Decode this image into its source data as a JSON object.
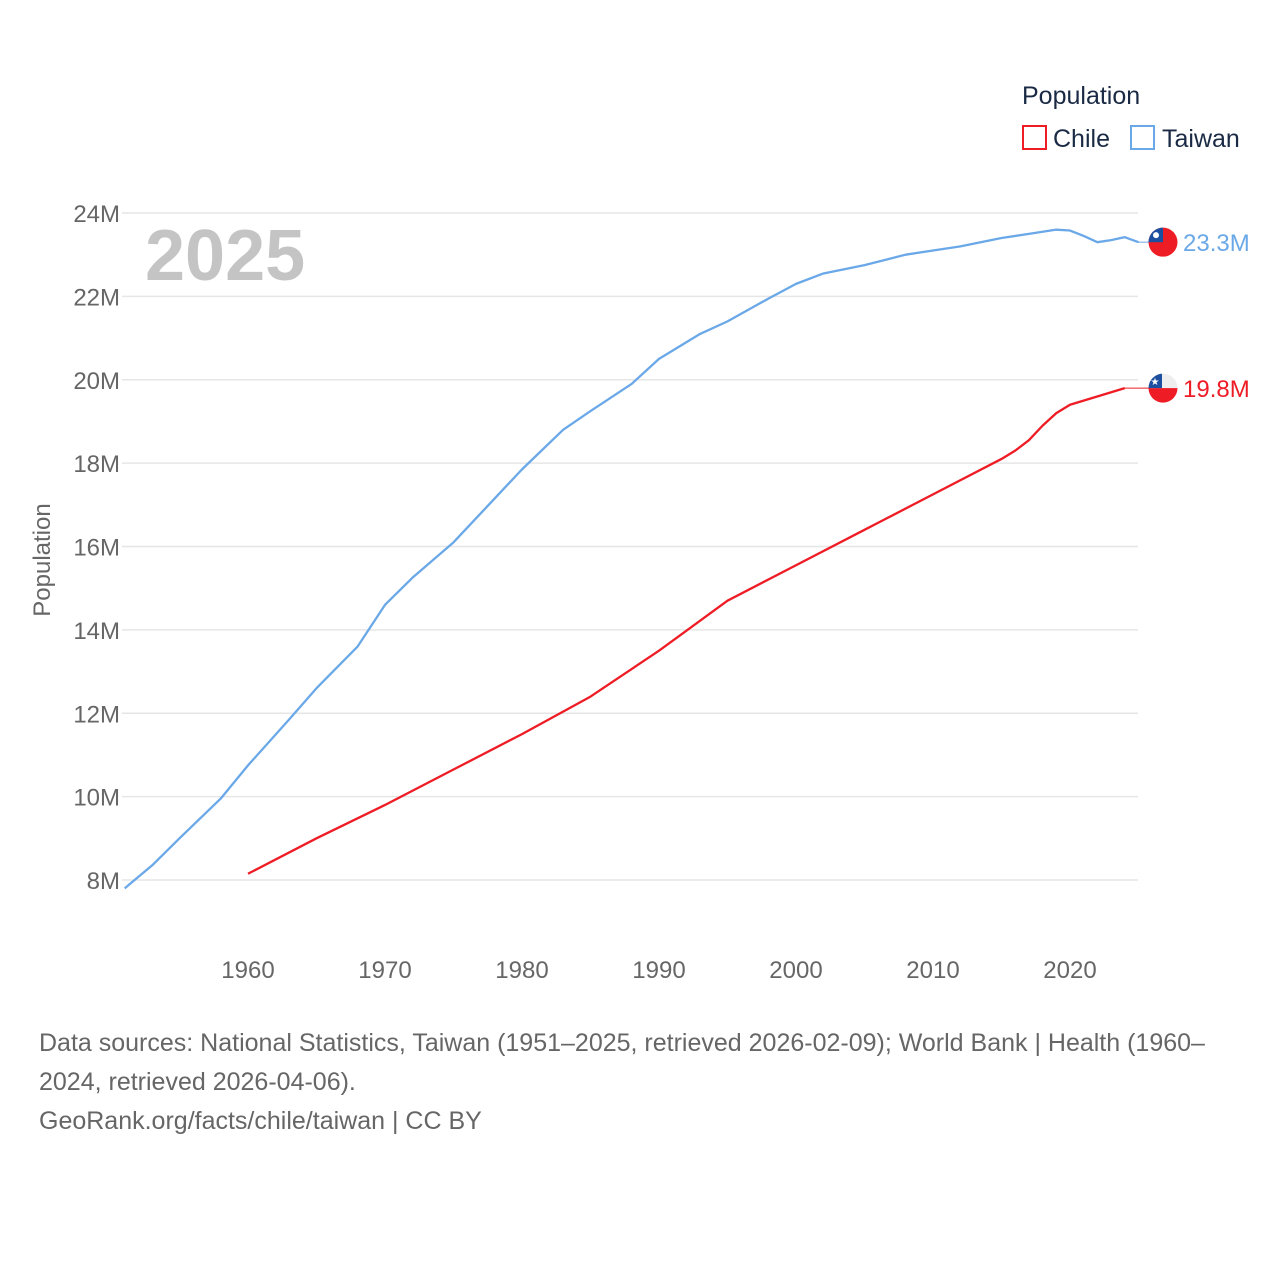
{
  "chart_data": {
    "type": "line",
    "title": "",
    "year_label": "2025",
    "xlabel": "",
    "ylabel": "Population",
    "xlim": [
      1951,
      2025
    ],
    "ylim": [
      8,
      24
    ],
    "y_unit": "M",
    "x_ticks": [
      1960,
      1970,
      1980,
      1990,
      2000,
      2010,
      2020
    ],
    "y_ticks": [
      "8M",
      "10M",
      "12M",
      "14M",
      "16M",
      "18M",
      "20M",
      "22M",
      "24M"
    ],
    "y_tick_values": [
      8,
      10,
      12,
      14,
      16,
      18,
      20,
      22,
      24
    ],
    "grid": true,
    "legend": {
      "title": "Population",
      "placement": "top-right",
      "entries": [
        "Chile",
        "Taiwan"
      ]
    },
    "series": [
      {
        "name": "Chile",
        "color": "#ee1c25",
        "end_label": "19.8M",
        "flag": "chile-flag",
        "x": [
          1960,
          1965,
          1970,
          1975,
          1980,
          1985,
          1990,
          1995,
          2000,
          2005,
          2010,
          2015,
          2016,
          2017,
          2018,
          2019,
          2020,
          2024
        ],
        "y": [
          8.15,
          9.0,
          9.8,
          10.65,
          11.5,
          12.4,
          13.5,
          14.7,
          15.55,
          16.4,
          17.25,
          18.1,
          18.3,
          18.55,
          18.9,
          19.2,
          19.4,
          19.8
        ]
      },
      {
        "name": "Taiwan",
        "color": "#6aa8e8",
        "end_label": "23.3M",
        "flag": "taiwan-flag",
        "x": [
          1951,
          1953,
          1955,
          1958,
          1960,
          1963,
          1965,
          1968,
          1970,
          1972,
          1975,
          1978,
          1980,
          1983,
          1985,
          1988,
          1990,
          1993,
          1995,
          1998,
          2000,
          2002,
          2005,
          2008,
          2010,
          2012,
          2015,
          2017,
          2019,
          2020,
          2021,
          2022,
          2023,
          2024,
          2025
        ],
        "y": [
          7.8,
          8.35,
          9.0,
          9.95,
          10.75,
          11.85,
          12.6,
          13.6,
          14.6,
          15.25,
          16.1,
          17.15,
          17.85,
          18.8,
          19.25,
          19.9,
          20.5,
          21.1,
          21.4,
          21.95,
          22.3,
          22.55,
          22.75,
          23.0,
          23.1,
          23.2,
          23.4,
          23.5,
          23.6,
          23.58,
          23.45,
          23.3,
          23.35,
          23.42,
          23.3
        ]
      }
    ]
  },
  "footer": {
    "sources": "Data sources: National Statistics, Taiwan (1951–2025, retrieved 2026-02-09); World Bank | Health (1960–2024, retrieved 2026-04-06).",
    "credit": "GeoRank.org/facts/chile/taiwan | CC BY"
  }
}
